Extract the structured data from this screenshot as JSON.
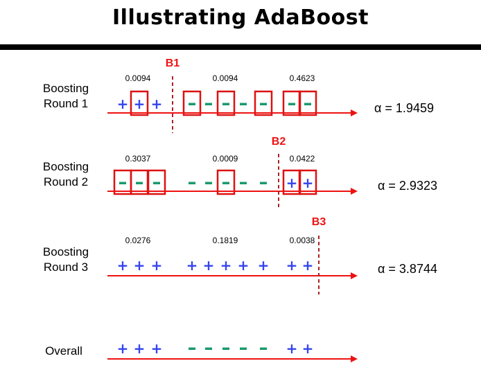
{
  "title": "Illustrating AdaBoost",
  "colors": {
    "axis": "#ee1111",
    "box": "#dd1111",
    "boundary": "#aa2222",
    "boundary_label": "#ee1111",
    "plus": "#3344ee",
    "minus": "#1a9a6a"
  },
  "rounds": [
    {
      "label_line1": "Boosting",
      "label_line2": "Round 1",
      "weights": [
        "0.0094",
        "0.0094",
        "0.4623"
      ],
      "symbols": [
        "+",
        "+",
        "+",
        "-",
        "-",
        "-",
        "-",
        "-",
        "-",
        "-"
      ],
      "boxed": [
        false,
        true,
        false,
        true,
        false,
        true,
        false,
        true,
        true,
        true
      ],
      "boundary_label": "B1",
      "boundary_after": 2,
      "alpha": "α = 1.9459"
    },
    {
      "label_line1": "Boosting",
      "label_line2": "Round 2",
      "weights": [
        "0.3037",
        "0.0009",
        "0.0422"
      ],
      "symbols": [
        "-",
        "-",
        "-",
        "-",
        "-",
        "-",
        "-",
        "-",
        "+",
        "+"
      ],
      "boxed": [
        true,
        true,
        true,
        false,
        false,
        true,
        false,
        false,
        true,
        true
      ],
      "boundary_label": "B2",
      "boundary_after": 7,
      "alpha": "α = 2.9323"
    },
    {
      "label_line1": "Boosting",
      "label_line2": "Round 3",
      "weights": [
        "0.0276",
        "0.1819",
        "0.0038"
      ],
      "symbols": [
        "+",
        "+",
        "+",
        "+",
        "+",
        "+",
        "+",
        "+",
        "+",
        "+"
      ],
      "boxed": [
        false,
        false,
        false,
        false,
        false,
        false,
        false,
        false,
        false,
        false
      ],
      "boundary_label": "B3",
      "boundary_after": 9,
      "alpha": "α = 3.8744"
    }
  ],
  "overall": {
    "label": "Overall",
    "symbols": [
      "+",
      "+",
      "+",
      "-",
      "-",
      "-",
      "-",
      "-",
      "+",
      "+"
    ]
  }
}
